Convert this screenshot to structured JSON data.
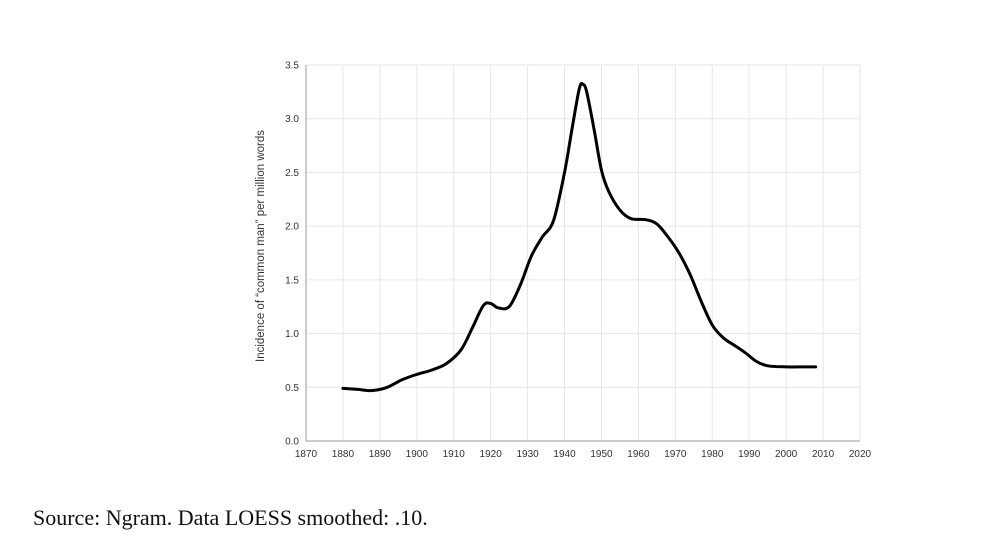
{
  "chart_data": {
    "type": "line",
    "title": "",
    "xlabel": "",
    "ylabel": "Incidence of “common man” per million words",
    "xlim": [
      1870,
      2020
    ],
    "ylim": [
      0,
      3.5
    ],
    "x_ticks": [
      "1870",
      "1880",
      "1890",
      "1900",
      "1910",
      "1920",
      "1930",
      "1940",
      "1950",
      "1960",
      "1970",
      "1980",
      "1990",
      "2000",
      "2010",
      "2020"
    ],
    "y_ticks": [
      "0.0",
      "0.5",
      "1.0",
      "1.5",
      "2.0",
      "2.5",
      "3.0",
      "3.5"
    ],
    "grid": true,
    "legend": "none",
    "series": [
      {
        "color": "#000000",
        "x": [
          1880,
          1884,
          1888,
          1892,
          1896,
          1900,
          1904,
          1908,
          1912,
          1915,
          1918,
          1920,
          1922,
          1925,
          1928,
          1931,
          1934,
          1937,
          1940,
          1942,
          1944,
          1945,
          1946,
          1948,
          1950,
          1952,
          1955,
          1958,
          1962,
          1965,
          1968,
          1971,
          1974,
          1977,
          1980,
          1983,
          1986,
          1989,
          1992,
          1995,
          2000,
          2005,
          2008
        ],
        "y": [
          0.49,
          0.48,
          0.47,
          0.5,
          0.57,
          0.62,
          0.66,
          0.72,
          0.85,
          1.05,
          1.26,
          1.28,
          1.24,
          1.25,
          1.45,
          1.72,
          1.9,
          2.05,
          2.5,
          2.9,
          3.28,
          3.32,
          3.25,
          2.9,
          2.52,
          2.32,
          2.15,
          2.07,
          2.06,
          2.02,
          1.9,
          1.75,
          1.55,
          1.3,
          1.08,
          0.96,
          0.89,
          0.82,
          0.74,
          0.7,
          0.69,
          0.69,
          0.69
        ]
      }
    ]
  },
  "source_note": "Source: Ngram. Data LOESS smoothed: .10."
}
